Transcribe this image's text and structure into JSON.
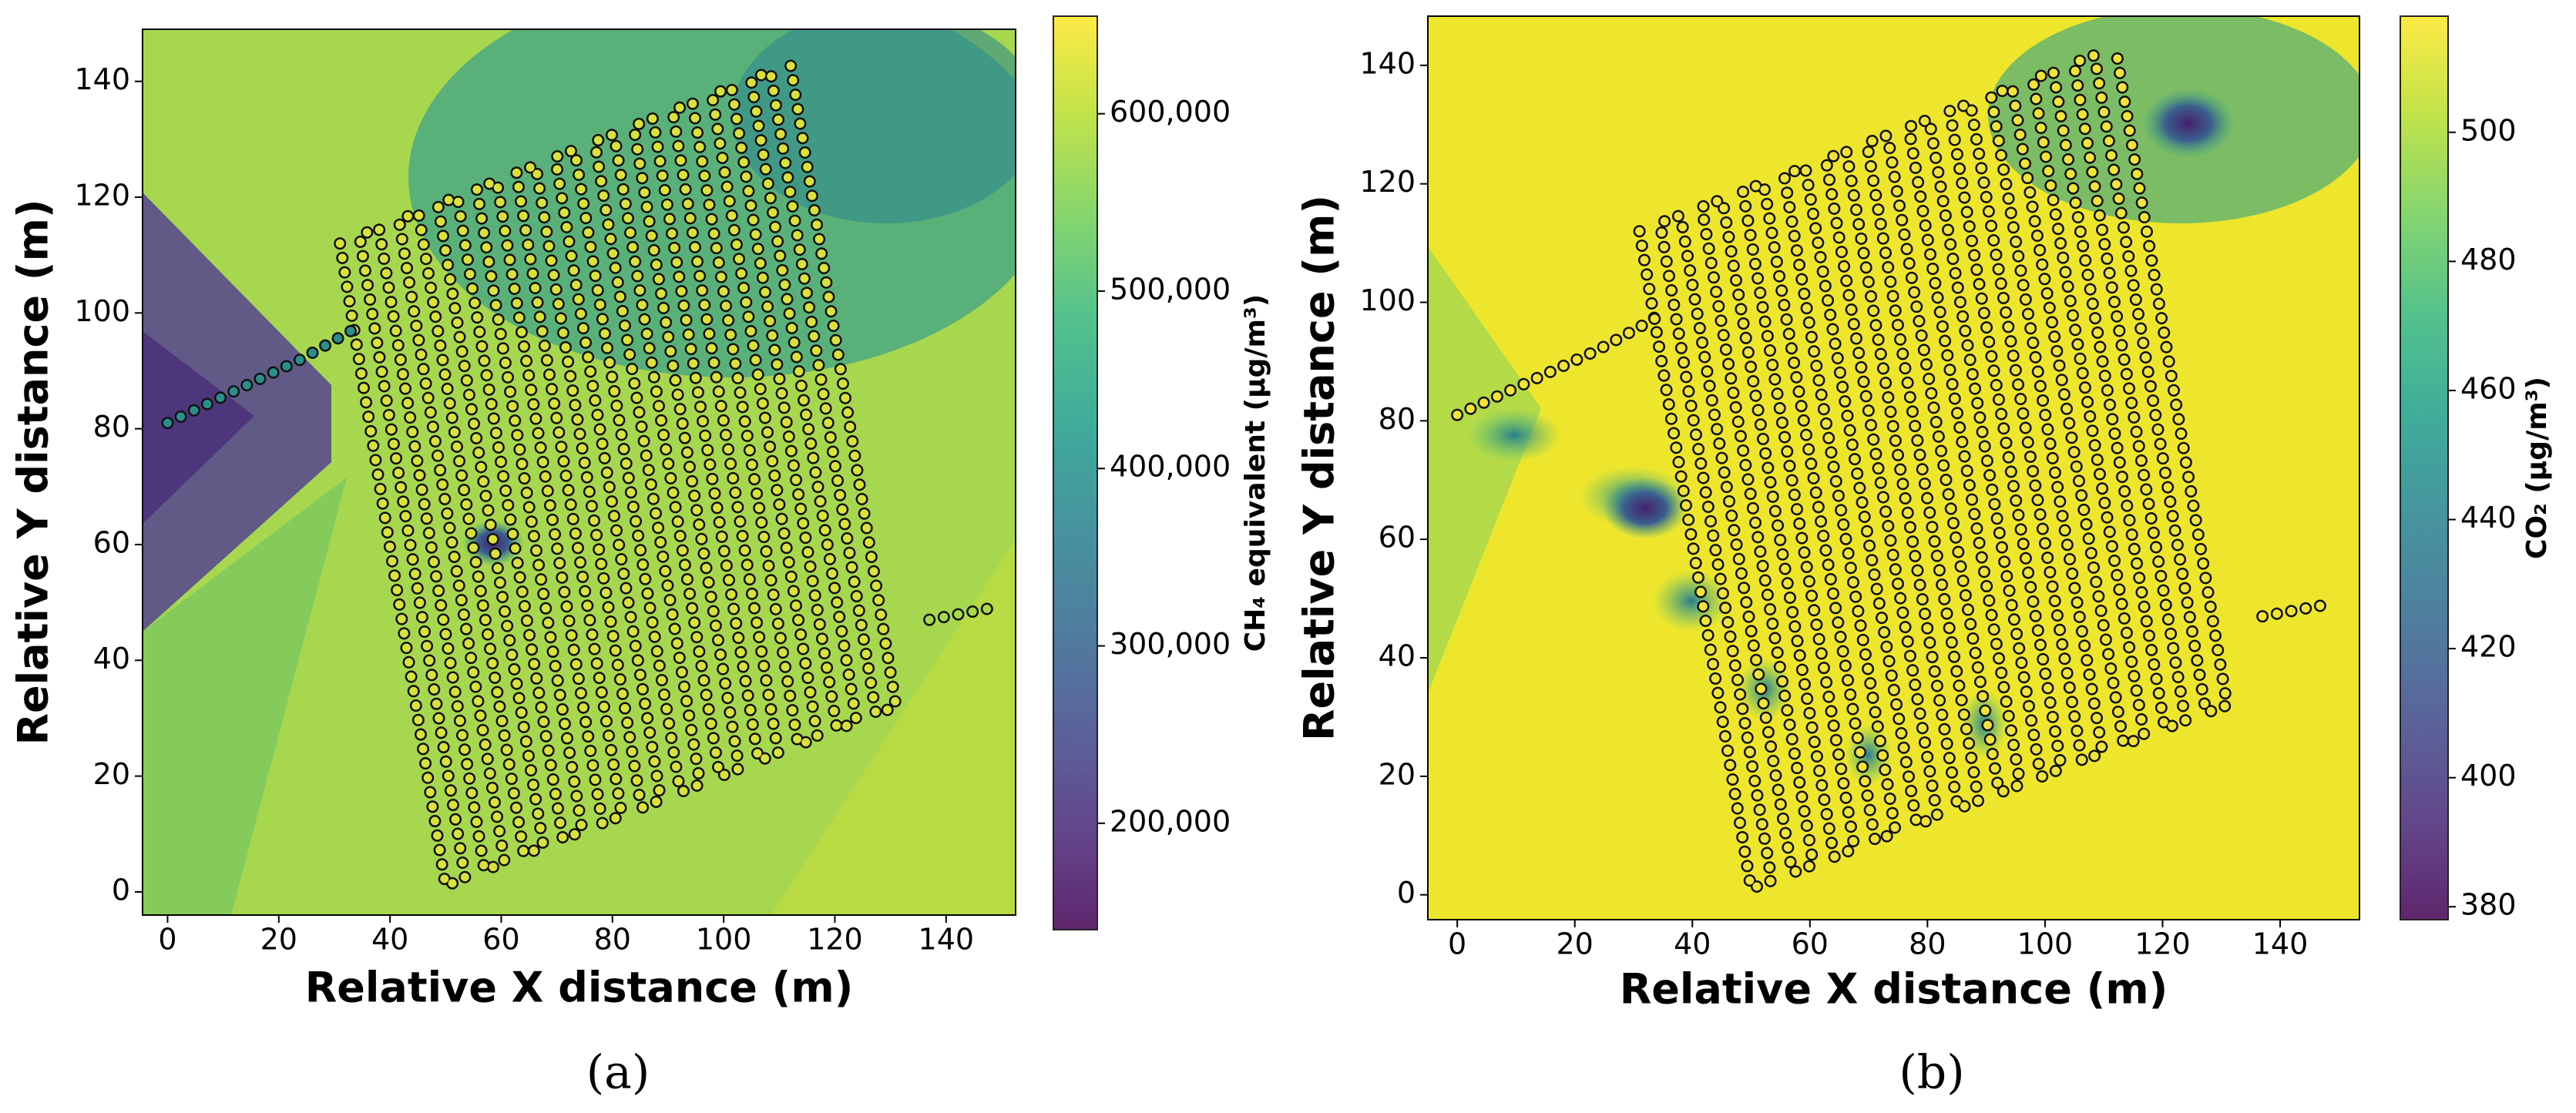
{
  "chart_data": [
    {
      "type": "heatmap",
      "caption": "(a)",
      "xlabel": "Relative X distance (m)",
      "ylabel": "Relative Y distance (m)",
      "xlim": [
        -4.5,
        152.5
      ],
      "ylim": [
        -4,
        149
      ],
      "xticks": [
        0,
        20,
        40,
        60,
        80,
        100,
        120,
        140
      ],
      "yticks": [
        0,
        20,
        40,
        60,
        80,
        100,
        120,
        140
      ],
      "colorbar_label": "CH₄ equivalent (µg/m³)",
      "colorbar_lim": [
        140000,
        655000
      ],
      "colorbar_ticks": [
        {
          "value": 200000,
          "label": "200,000"
        },
        {
          "value": 300000,
          "label": "300,000"
        },
        {
          "value": 400000,
          "label": "400,000"
        },
        {
          "value": 500000,
          "label": "500,000"
        },
        {
          "value": 600000,
          "label": "600,000"
        }
      ],
      "colormap": [
        "#440154",
        "#482878",
        "#3e4989",
        "#31688e",
        "#26828e",
        "#1f9e89",
        "#35b779",
        "#6ece58",
        "#b5de2b",
        "#fde725"
      ],
      "series": [
        {
          "color": "#d8e23a",
          "x": [
            31,
            50,
            53.5,
            34.5,
            38,
            57,
            60.6,
            41.6,
            45.1,
            64.1,
            67.6,
            48.6,
            52.1,
            71.1,
            74.6,
            55.6,
            59.2,
            78.2,
            81.7,
            62.7,
            66.2,
            85.2,
            88.7,
            69.7,
            73.2,
            92.2,
            95.8,
            76.8,
            80.3,
            99.3,
            102.8,
            83.8,
            87.3,
            106.3,
            109.8,
            90.8,
            94.4,
            113.4,
            116.9,
            97.9,
            101.4,
            120.4,
            123.9,
            104.9,
            108.4,
            127.4,
            131,
            112
          ],
          "y": [
            112,
            1,
            2.4,
            113.4,
            114.7,
            3.7,
            5.1,
            116.1,
            117.4,
            6.4,
            7.8,
            118.8,
            120.1,
            9.1,
            10.5,
            121.5,
            122.8,
            11.8,
            13.2,
            124.2,
            125.5,
            14.5,
            15.9,
            126.9,
            128.2,
            17.2,
            18.6,
            129.6,
            130.9,
            19.9,
            21.3,
            132.3,
            133.6,
            22.6,
            24,
            135,
            136.3,
            25.3,
            26.7,
            137.7,
            139,
            28,
            29.4,
            140.4,
            141.7,
            30.7,
            32,
            143
          ]
        },
        {
          "color": "#2a8f8a",
          "x": [
            0,
            12,
            24,
            35
          ],
          "y": [
            81,
            86.5,
            92,
            98
          ]
        },
        {
          "color": "#a9d94a",
          "x": [
            137,
            148
          ],
          "y": [
            47,
            49
          ]
        }
      ]
    },
    {
      "type": "heatmap",
      "caption": "(b)",
      "xlabel": "Relative X distance (m)",
      "ylabel": "Relative Y distance (m)",
      "xlim": [
        -5,
        153.5
      ],
      "ylim": [
        -4.2,
        148.3
      ],
      "xticks": [
        0,
        20,
        40,
        60,
        80,
        100,
        120,
        140
      ],
      "yticks": [
        0,
        20,
        40,
        60,
        80,
        100,
        120,
        140
      ],
      "colorbar_label": "CO₂ (µg/m³)",
      "colorbar_lim": [
        378,
        518
      ],
      "colorbar_ticks": [
        380,
        400,
        420,
        440,
        460,
        480,
        500
      ],
      "colormap": [
        "#440154",
        "#482878",
        "#3e4989",
        "#31688e",
        "#26828e",
        "#1f9e89",
        "#35b779",
        "#6ece58",
        "#b5de2b",
        "#fde725"
      ],
      "series": [
        {
          "color": "#f0e33a",
          "x": [
            31,
            50,
            53.5,
            34.5,
            38,
            57,
            60.6,
            41.6,
            45.1,
            64.1,
            67.6,
            48.6,
            52.1,
            71.1,
            74.6,
            55.6,
            59.2,
            78.2,
            81.7,
            62.7,
            66.2,
            85.2,
            88.7,
            69.7,
            73.2,
            92.2,
            95.8,
            76.8,
            80.3,
            99.3,
            102.8,
            83.8,
            87.3,
            106.3,
            109.8,
            90.8,
            94.4,
            113.4,
            116.9,
            97.9,
            101.4,
            120.4,
            123.9,
            104.9,
            108.4,
            127.4,
            131,
            112
          ],
          "y": [
            112,
            1,
            2.4,
            113.4,
            114.7,
            3.7,
            5.1,
            116.1,
            117.4,
            6.4,
            7.8,
            118.8,
            120.1,
            9.1,
            10.5,
            121.5,
            122.8,
            11.8,
            13.2,
            124.2,
            125.5,
            14.5,
            15.9,
            126.9,
            128.2,
            17.2,
            18.6,
            129.6,
            130.9,
            19.9,
            21.3,
            132.3,
            133.6,
            22.6,
            24,
            135,
            136.3,
            25.3,
            26.7,
            137.7,
            139,
            28,
            29.4,
            140.4,
            141.7,
            30.7,
            32,
            143
          ]
        },
        {
          "color": "#f0e33a",
          "x": [
            0,
            12,
            24,
            35
          ],
          "y": [
            81,
            86.5,
            92,
            98
          ]
        },
        {
          "color": "#f0e33a",
          "x": [
            137,
            148
          ],
          "y": [
            47,
            49
          ]
        }
      ]
    }
  ]
}
